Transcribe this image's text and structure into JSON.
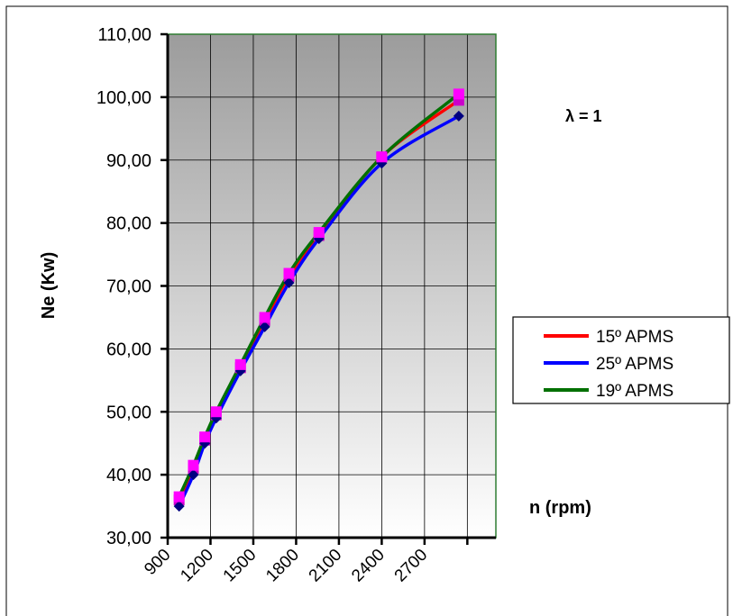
{
  "chart_data": {
    "type": "line",
    "title": "",
    "annotation": "λ = 1",
    "xlabel": "n (rpm)",
    "ylabel": "Ne (Kw)",
    "xlim": [
      900,
      3200
    ],
    "ylim": [
      30,
      110
    ],
    "x_tick_values": [
      900,
      1200,
      1500,
      1800,
      2100,
      2400,
      2700
    ],
    "x_tick_labels": [
      "900",
      "1200",
      "1500",
      "1800",
      "2100",
      "2400",
      "2700"
    ],
    "y_tick_values": [
      30,
      40,
      50,
      60,
      70,
      80,
      90,
      100,
      110
    ],
    "y_tick_labels": [
      "30,00",
      "40,00",
      "50,00",
      "60,00",
      "70,00",
      "80,00",
      "90,00",
      "100,00",
      "110,00"
    ],
    "grid": true,
    "legend_position": "right",
    "series": [
      {
        "name": "15º APMS",
        "color": "#ff0000",
        "marker": "square",
        "marker_color": "#cc00cc",
        "x": [
          980,
          1080,
          1160,
          1240,
          1410,
          1580,
          1750,
          1960,
          2400,
          2940
        ],
        "y": [
          36.0,
          41.0,
          45.5,
          49.5,
          57.0,
          64.5,
          71.5,
          78.0,
          90.5,
          99.5
        ]
      },
      {
        "name": "25º APMS",
        "color": "#0000ff",
        "marker": "diamond",
        "marker_color": "#000080",
        "x": [
          980,
          1080,
          1160,
          1240,
          1410,
          1580,
          1750,
          1960,
          2400,
          2940
        ],
        "y": [
          35.0,
          40.0,
          45.0,
          49.0,
          56.5,
          63.5,
          70.5,
          77.5,
          89.5,
          97.0
        ]
      },
      {
        "name": "19º APMS",
        "color": "#007000",
        "marker": "square",
        "marker_color": "#ff00ff",
        "x": [
          980,
          1080,
          1160,
          1240,
          1410,
          1580,
          1750,
          1960,
          2400,
          2940
        ],
        "y": [
          36.5,
          41.5,
          46.0,
          50.0,
          57.5,
          65.0,
          72.0,
          78.5,
          90.5,
          100.5
        ]
      }
    ]
  }
}
